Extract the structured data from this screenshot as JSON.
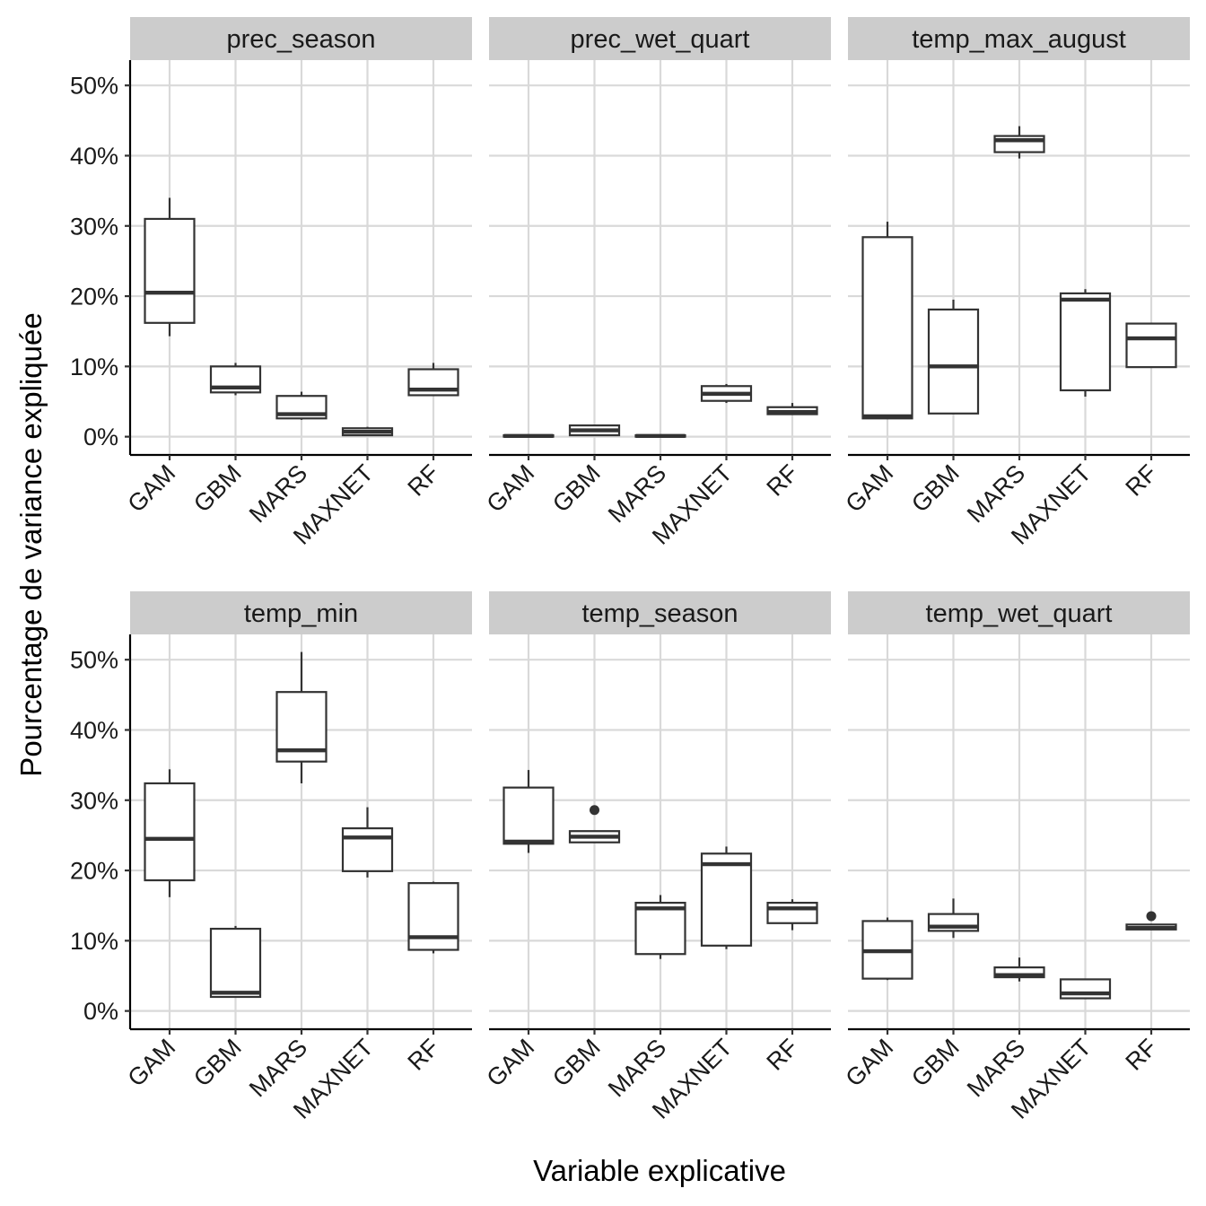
{
  "chart_data": {
    "type": "boxplot",
    "xlabel": "Variable explicative",
    "ylabel": "Pourcentage de variance expliquée",
    "categories": [
      "GAM",
      "GBM",
      "MARS",
      "MAXNET",
      "RF"
    ],
    "y_ticks": [
      0,
      10,
      20,
      30,
      40,
      50
    ],
    "y_tick_labels": [
      "0%",
      "10%",
      "20%",
      "30%",
      "40%",
      "50%"
    ],
    "ylim": [
      -2.6,
      53.6
    ],
    "panels": [
      {
        "title": "prec_season",
        "boxes": [
          {
            "category": "GAM",
            "min": 14.3,
            "q1": 16.2,
            "median": 20.5,
            "q3": 31.0,
            "max": 34.0,
            "outliers": []
          },
          {
            "category": "GBM",
            "min": 5.9,
            "q1": 6.3,
            "median": 7.0,
            "q3": 10.0,
            "max": 10.5,
            "outliers": []
          },
          {
            "category": "MARS",
            "min": 2.4,
            "q1": 2.6,
            "median": 3.2,
            "q3": 5.8,
            "max": 6.4,
            "outliers": []
          },
          {
            "category": "MAXNET",
            "min": 0.2,
            "q1": 0.2,
            "median": 0.7,
            "q3": 1.2,
            "max": 1.4,
            "outliers": []
          },
          {
            "category": "RF",
            "min": 5.8,
            "q1": 5.9,
            "median": 6.7,
            "q3": 9.6,
            "max": 10.5,
            "outliers": []
          }
        ]
      },
      {
        "title": "prec_wet_quart",
        "boxes": [
          {
            "category": "GAM",
            "min": 0.0,
            "q1": 0.0,
            "median": 0.1,
            "q3": 0.2,
            "max": 0.2,
            "outliers": []
          },
          {
            "category": "GBM",
            "min": 0.2,
            "q1": 0.2,
            "median": 0.9,
            "q3": 1.6,
            "max": 1.7,
            "outliers": []
          },
          {
            "category": "MARS",
            "min": 0.0,
            "q1": 0.0,
            "median": 0.1,
            "q3": 0.2,
            "max": 0.2,
            "outliers": []
          },
          {
            "category": "MAXNET",
            "min": 4.8,
            "q1": 5.1,
            "median": 6.1,
            "q3": 7.2,
            "max": 7.5,
            "outliers": []
          },
          {
            "category": "RF",
            "min": 3.1,
            "q1": 3.2,
            "median": 3.5,
            "q3": 4.2,
            "max": 4.8,
            "outliers": []
          }
        ]
      },
      {
        "title": "temp_max_august",
        "boxes": [
          {
            "category": "GAM",
            "min": 2.6,
            "q1": 2.6,
            "median": 2.9,
            "q3": 28.4,
            "max": 30.6,
            "outliers": []
          },
          {
            "category": "GBM",
            "min": 3.3,
            "q1": 3.3,
            "median": 10.0,
            "q3": 18.1,
            "max": 19.5,
            "outliers": []
          },
          {
            "category": "MARS",
            "min": 39.6,
            "q1": 40.5,
            "median": 42.2,
            "q3": 42.8,
            "max": 44.2,
            "outliers": []
          },
          {
            "category": "MAXNET",
            "min": 5.7,
            "q1": 6.6,
            "median": 19.5,
            "q3": 20.4,
            "max": 21.0,
            "outliers": []
          },
          {
            "category": "RF",
            "min": 9.9,
            "q1": 9.9,
            "median": 14.0,
            "q3": 16.1,
            "max": 16.2,
            "outliers": []
          }
        ]
      },
      {
        "title": "temp_min",
        "boxes": [
          {
            "category": "GAM",
            "min": 16.2,
            "q1": 18.6,
            "median": 24.5,
            "q3": 32.4,
            "max": 34.4,
            "outliers": []
          },
          {
            "category": "GBM",
            "min": 2.0,
            "q1": 2.0,
            "median": 2.6,
            "q3": 11.7,
            "max": 12.1,
            "outliers": []
          },
          {
            "category": "MARS",
            "min": 32.4,
            "q1": 35.5,
            "median": 37.1,
            "q3": 45.4,
            "max": 51.1,
            "outliers": []
          },
          {
            "category": "MAXNET",
            "min": 19.0,
            "q1": 19.9,
            "median": 24.7,
            "q3": 26.0,
            "max": 29.0,
            "outliers": []
          },
          {
            "category": "RF",
            "min": 8.2,
            "q1": 8.7,
            "median": 10.5,
            "q3": 18.2,
            "max": 18.4,
            "outliers": []
          }
        ]
      },
      {
        "title": "temp_season",
        "boxes": [
          {
            "category": "GAM",
            "min": 22.5,
            "q1": 23.8,
            "median": 24.1,
            "q3": 31.8,
            "max": 34.3,
            "outliers": []
          },
          {
            "category": "GBM",
            "min": 24.0,
            "q1": 24.0,
            "median": 24.8,
            "q3": 25.6,
            "max": 25.6,
            "outliers": [
              28.6
            ]
          },
          {
            "category": "MARS",
            "min": 7.4,
            "q1": 8.1,
            "median": 14.6,
            "q3": 15.4,
            "max": 16.5,
            "outliers": []
          },
          {
            "category": "MAXNET",
            "min": 8.8,
            "q1": 9.3,
            "median": 20.9,
            "q3": 22.4,
            "max": 23.4,
            "outliers": []
          },
          {
            "category": "RF",
            "min": 11.5,
            "q1": 12.5,
            "median": 14.6,
            "q3": 15.4,
            "max": 15.9,
            "outliers": []
          }
        ]
      },
      {
        "title": "temp_wet_quart",
        "boxes": [
          {
            "category": "GAM",
            "min": 4.4,
            "q1": 4.6,
            "median": 8.5,
            "q3": 12.8,
            "max": 13.3,
            "outliers": []
          },
          {
            "category": "GBM",
            "min": 10.4,
            "q1": 11.4,
            "median": 12.0,
            "q3": 13.8,
            "max": 16.0,
            "outliers": []
          },
          {
            "category": "MARS",
            "min": 4.2,
            "q1": 4.8,
            "median": 5.1,
            "q3": 6.2,
            "max": 7.6,
            "outliers": []
          },
          {
            "category": "MAXNET",
            "min": 1.7,
            "q1": 1.8,
            "median": 2.5,
            "q3": 4.5,
            "max": 4.5,
            "outliers": []
          },
          {
            "category": "RF",
            "min": 11.6,
            "q1": 11.6,
            "median": 11.8,
            "q3": 12.3,
            "max": 12.3,
            "outliers": [
              13.5
            ]
          }
        ]
      }
    ]
  }
}
